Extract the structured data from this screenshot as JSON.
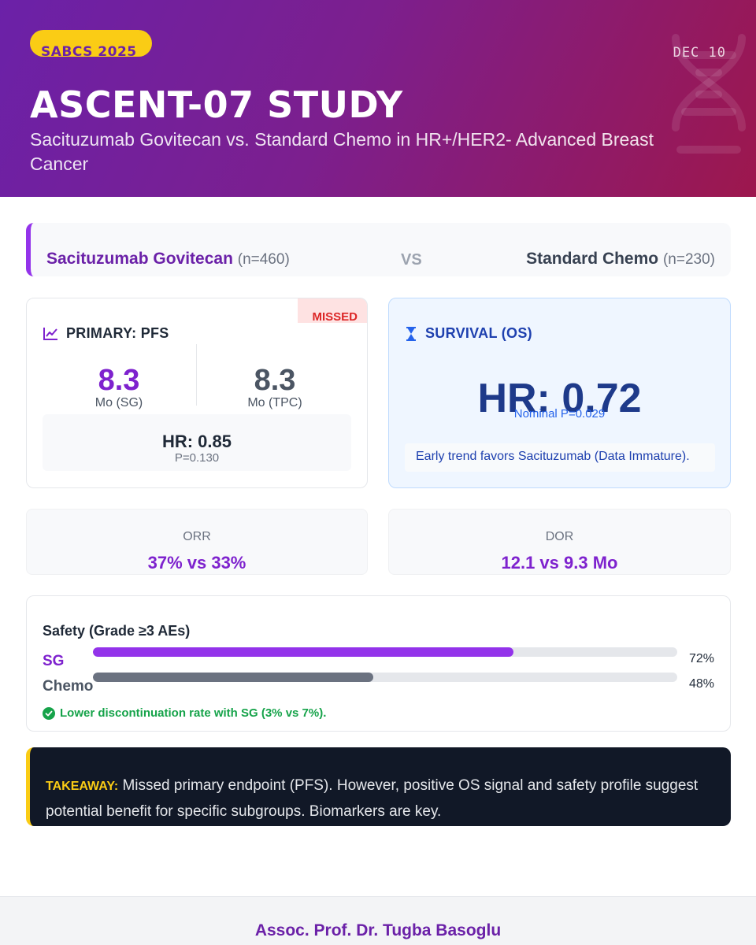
{
  "header": {
    "conference": "SABCS 2025",
    "date": "DEC 10",
    "title": "ASCENT-07 STUDY",
    "subtitle": "Sacituzumab Govitecan vs. Standard Chemo in HR+/HER2- Advanced Breast Cancer",
    "decor_icon": "dna-icon"
  },
  "comparison": {
    "arm1_name": "Sacituzumab Govitecan",
    "arm1_n": "(n=460)",
    "vs": "VS",
    "arm2_name": "Standard Chemo",
    "arm2_n": "(n=230)"
  },
  "pfs": {
    "icon": "line-chart-icon",
    "label": "PRIMARY: PFS",
    "status": "MISSED",
    "sg_value": "8.3",
    "sg_caption": "Mo (SG)",
    "tpc_value": "8.3",
    "tpc_caption": "Mo (TPC)",
    "hr": "HR: 0.85",
    "p": "P=0.130"
  },
  "os": {
    "icon": "hourglass-icon",
    "label": "SURVIVAL (OS)",
    "hr": "HR: 0.72",
    "p": "Nominal P=0.029",
    "note": "Early trend favors Sacituzumab (Data Immature)."
  },
  "orr": {
    "label": "ORR",
    "value": "37% vs 33%"
  },
  "dor": {
    "label": "DOR",
    "value": "12.1 vs 9.3 Mo"
  },
  "safety": {
    "title": "Safety (Grade ≥3 AEs)",
    "rows": [
      {
        "label": "SG",
        "value": "72%",
        "fraction": 0.72
      },
      {
        "label": "Chemo",
        "value": "48%",
        "fraction": 0.48
      }
    ],
    "note_icon": "check-circle-icon",
    "note": "Lower discontinuation rate with SG (3% vs 7%)."
  },
  "takeaway": {
    "label": "TAKEAWAY:",
    "text": "Missed primary endpoint (PFS). However, positive OS signal and safety profile suggest potential benefit for specific subgroups. Biomarkers are key."
  },
  "footer": {
    "author": "Assoc. Prof. Dr. Tugba Basoglu"
  },
  "colors": {
    "header_start": "#6b21a8",
    "header_end": "#9d174d",
    "accent_purple": "#7e22ce",
    "missed_red": "#dc2626",
    "os_blue": "#1e3a8a",
    "safe_green": "#16a34a",
    "takeaway_yellow": "#facc15"
  }
}
